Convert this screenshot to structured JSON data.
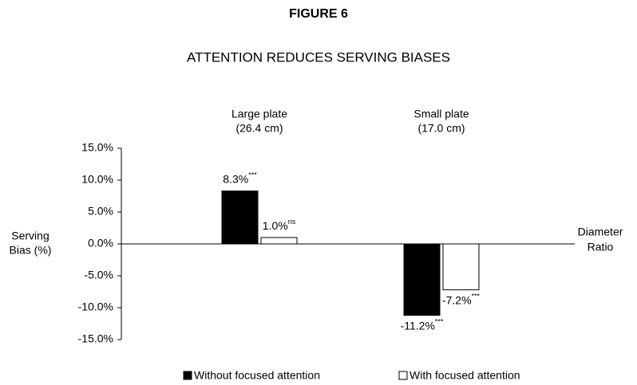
{
  "chart_data": {
    "type": "bar",
    "title": "FIGURE 6",
    "subtitle": "ATTENTION REDUCES SERVING BIASES",
    "categories": [
      "Large plate",
      "Small plate"
    ],
    "category_sublabels": [
      "(26.4 cm)",
      "(17.0 cm)"
    ],
    "y_label": [
      "Serving",
      "Bias (%)"
    ],
    "x_label": [
      "Diameter",
      "Ratio"
    ],
    "series": [
      {
        "name": "Without focused attention",
        "color": "#000000",
        "values": [
          8.3,
          -11.2
        ],
        "value_labels": [
          "8.3%",
          "-11.2%"
        ],
        "significance": [
          "***",
          "***"
        ]
      },
      {
        "name": "With focused attention",
        "color": "#ffffff",
        "values": [
          1.0,
          -7.2
        ],
        "value_labels": [
          "1.0%",
          "-7.2%"
        ],
        "significance": [
          "ns",
          "***"
        ]
      }
    ],
    "ylim": [
      -15,
      15
    ],
    "yticks": [
      {
        "value": -15,
        "label": "-15.0%"
      },
      {
        "value": -10,
        "label": "-10.0%"
      },
      {
        "value": -5,
        "label": "-5.0%"
      },
      {
        "value": 0,
        "label": "0.0%"
      },
      {
        "value": 5,
        "label": "5.0%"
      },
      {
        "value": 10,
        "label": "10.0%"
      },
      {
        "value": 15,
        "label": "15.0%"
      }
    ],
    "legend": "bottom",
    "grid": false
  }
}
